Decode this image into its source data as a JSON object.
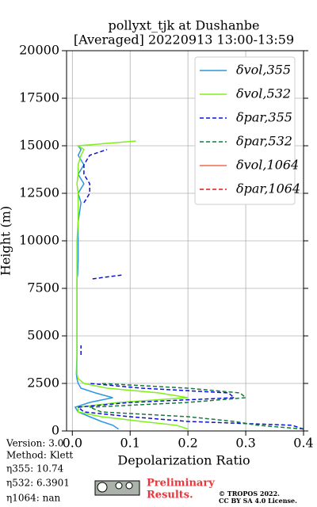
{
  "chart_data": {
    "type": "profile",
    "title": [
      "pollyxt_tjk at Dushanbe",
      "[Averaged] 20220913 13:00-13:59"
    ],
    "x_label": "Depolarization Ratio",
    "y_label": "Height (m)",
    "xlim": [
      -0.01,
      0.4
    ],
    "ylim": [
      0,
      20000
    ],
    "xticks": [
      {
        "value": 0,
        "label": "0.0"
      },
      0.1,
      0.2,
      0.3,
      0.4
    ],
    "yticks": [
      0,
      2500,
      5000,
      7500,
      10000,
      12500,
      15000,
      17500,
      20000
    ],
    "grid": true,
    "legend": "upper right",
    "heights": [
      100,
      300,
      500,
      750,
      1000,
      1250,
      1500,
      1750,
      2000,
      2250,
      2500,
      2750,
      3000,
      4000,
      4500,
      5000,
      6000,
      7000,
      8000,
      8200,
      9000,
      10000,
      11000,
      12000,
      12500,
      13000,
      13500,
      14000,
      14500,
      14800,
      15000,
      15250
    ],
    "series": [
      {
        "name": "δvol,355",
        "color": "#2e96e0",
        "dash": false,
        "values": [
          0.08,
          0.07,
          0.05,
          0.03,
          0.01,
          0.005,
          0.03,
          0.07,
          0.04,
          0.015,
          0.01,
          0.008,
          0.007,
          0.008,
          0.008,
          0.008,
          0.008,
          0.008,
          0.008,
          0.009,
          0.01,
          0.01,
          0.01,
          0.015,
          0.01,
          0.02,
          0.01,
          0.02,
          0.01,
          0.015,
          0.01,
          null
        ]
      },
      {
        "name": "δvol,532",
        "color": "#80f01a",
        "dash": false,
        "values": [
          0.2,
          0.18,
          0.12,
          0.05,
          0.01,
          0.01,
          0.08,
          0.2,
          0.15,
          0.06,
          0.02,
          0.01,
          0.008,
          0.008,
          0.008,
          0.008,
          0.008,
          0.008,
          0.008,
          0.008,
          0.008,
          0.008,
          0.01,
          0.01,
          0.01,
          0.008,
          0.01,
          0.01,
          0.015,
          0.02,
          0.01,
          0.11
        ]
      },
      {
        "name": "δpar,355",
        "color": "#0a10d8",
        "dash": true,
        "values": [
          0.4,
          0.38,
          0.2,
          0.1,
          0.02,
          0.01,
          0.1,
          0.28,
          0.27,
          0.12,
          0.03,
          null,
          null,
          0.015,
          0.015,
          null,
          null,
          null,
          0.035,
          0.085,
          null,
          null,
          null,
          0.02,
          0.03,
          0.03,
          0.02,
          0.02,
          0.03,
          0.06,
          null,
          null
        ]
      },
      {
        "name": "δpar,532",
        "color": "#127a3c",
        "dash": true,
        "values": [
          0.4,
          0.32,
          0.28,
          0.2,
          0.05,
          0.03,
          0.2,
          0.3,
          0.29,
          0.2,
          0.05,
          null,
          null,
          null,
          null,
          null,
          null,
          null,
          null,
          null,
          null,
          null,
          null,
          null,
          null,
          null,
          null,
          null,
          null,
          null,
          null,
          null
        ]
      },
      {
        "name": "δvol,1064",
        "color": "#f06a50",
        "dash": false,
        "values": [
          null,
          null,
          null,
          null,
          null,
          null,
          null,
          null,
          null,
          null,
          null,
          null,
          null,
          null,
          null,
          null,
          null,
          null,
          null,
          null,
          null,
          null,
          null,
          null,
          null,
          null,
          null,
          null,
          null,
          null,
          null,
          null
        ]
      },
      {
        "name": "δpar,1064",
        "color": "#d81a1a",
        "dash": true,
        "values": [
          null,
          null,
          null,
          null,
          null,
          null,
          null,
          null,
          null,
          null,
          null,
          null,
          null,
          null,
          null,
          null,
          null,
          null,
          null,
          null,
          null,
          null,
          null,
          null,
          null,
          null,
          null,
          null,
          null,
          null,
          null,
          null
        ]
      }
    ],
    "annotations": [
      "Version: 3.0",
      "Method: Klett",
      "η355:  10.74",
      "η532: 6.3901",
      "η1064:    nan"
    ],
    "preliminary": [
      "Preliminary",
      "Results."
    ],
    "license": [
      "© TROPOS 2022.",
      "CC BY SA 4.0 License."
    ]
  }
}
